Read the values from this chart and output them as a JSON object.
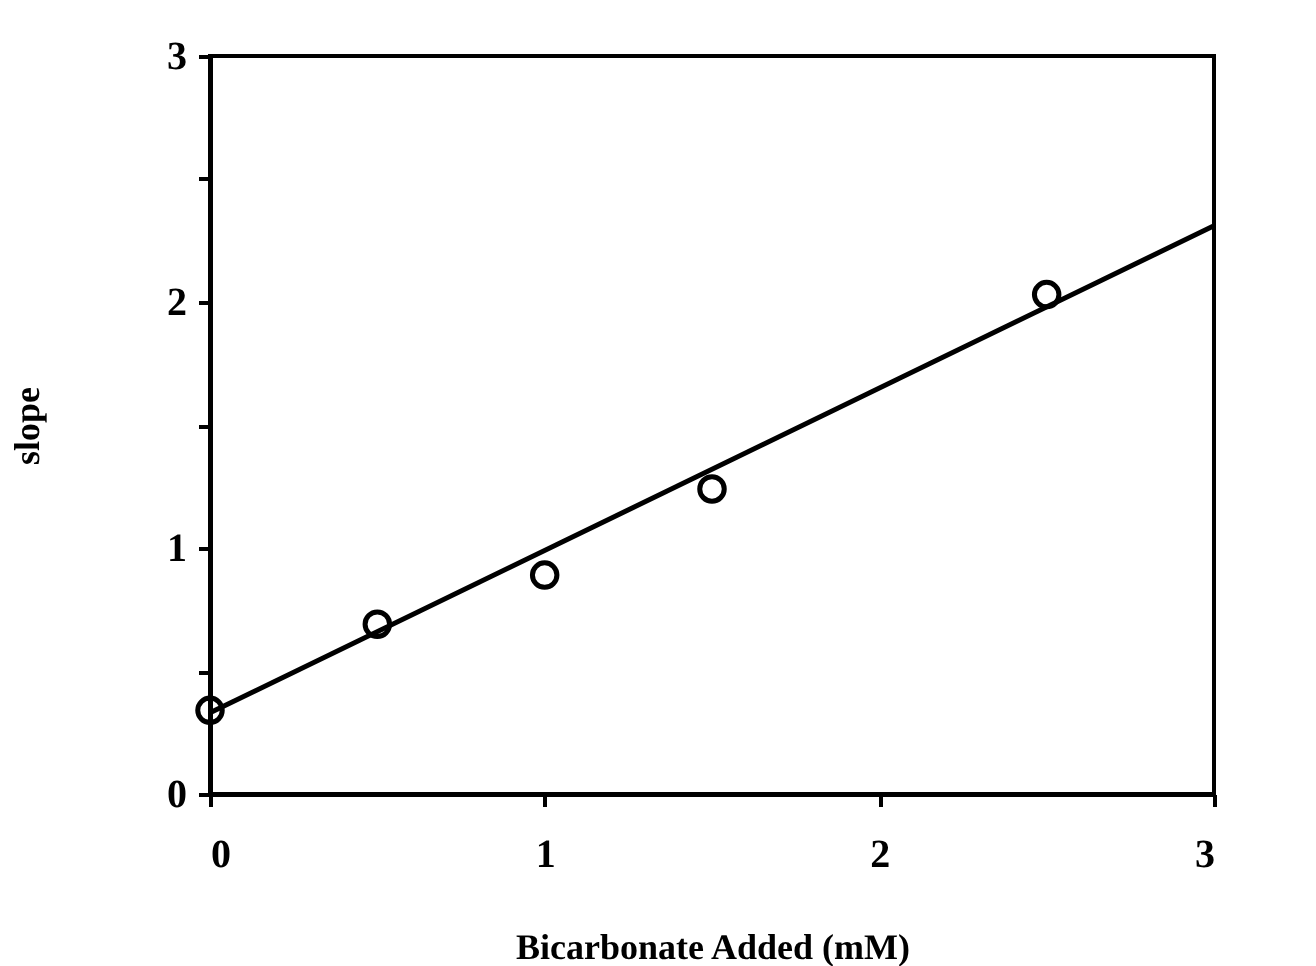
{
  "chart_data": {
    "type": "scatter",
    "xlabel": "Bicarbonate Added (mM)",
    "ylabel": "slope",
    "xlim": [
      0,
      3
    ],
    "ylim": [
      0,
      3
    ],
    "xticks": [
      0,
      1,
      2,
      3
    ],
    "yticks": [
      0,
      {
        "value": 0.5,
        "label": null
      },
      1,
      {
        "value": 1.5,
        "label": null
      },
      2,
      {
        "value": 2.5,
        "label": null
      },
      3
    ],
    "marker": "circle",
    "x": [
      0,
      0.5,
      1,
      1.5,
      2.5
    ],
    "series": [
      {
        "color": "#000000",
        "values": [
          0.34,
          0.69,
          0.89,
          1.24,
          2.03
        ]
      },
      {
        "type": "line",
        "color": "#000000",
        "x": [
          0,
          3
        ],
        "values": [
          0.33,
          2.31
        ],
        "line_style": "solid",
        "marker": "none"
      }
    ]
  }
}
